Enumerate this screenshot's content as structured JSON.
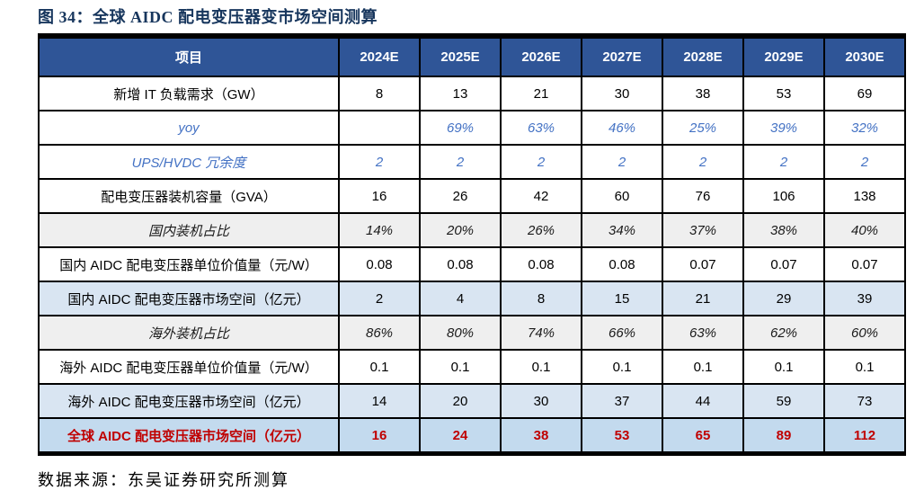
{
  "title": "图 34：全球 AIDC 配电变压器变市场空间测算",
  "source": "数据来源：东吴证券研究所测算",
  "colors": {
    "title_text": "#17365D",
    "header_bg": "#2F5597",
    "header_text": "#FFFFFF",
    "blue_italic_text": "#4472C4",
    "gray_row_bg": "#EFEFEF",
    "blue_row_bg": "#D9E5F2",
    "total_row_bg": "#C3DAEE",
    "total_text_red": "#C00000",
    "border": "#000000"
  },
  "chart_data": {
    "type": "table",
    "title": "全球 AIDC 配电变压器变市场空间测算",
    "columns": [
      "项目",
      "2024E",
      "2025E",
      "2026E",
      "2027E",
      "2028E",
      "2029E",
      "2030E"
    ],
    "rows": [
      {
        "label": "新增 IT 负载需求（GW）",
        "style": "plain",
        "values": [
          "8",
          "13",
          "21",
          "30",
          "38",
          "53",
          "69"
        ]
      },
      {
        "label": "yoy",
        "style": "blue-italic",
        "values": [
          "",
          "69%",
          "63%",
          "46%",
          "25%",
          "39%",
          "32%"
        ]
      },
      {
        "label": "UPS/HVDC 冗余度",
        "style": "blue-italic",
        "values": [
          "2",
          "2",
          "2",
          "2",
          "2",
          "2",
          "2"
        ]
      },
      {
        "label": "配电变压器装机容量（GVA）",
        "style": "plain",
        "values": [
          "16",
          "26",
          "42",
          "60",
          "76",
          "106",
          "138"
        ]
      },
      {
        "label": "国内装机占比",
        "style": "gray-italic",
        "values": [
          "14%",
          "20%",
          "26%",
          "34%",
          "37%",
          "38%",
          "40%"
        ]
      },
      {
        "label": "国内 AIDC 配电变压器单位价值量（元/W）",
        "style": "plain",
        "values": [
          "0.08",
          "0.08",
          "0.08",
          "0.08",
          "0.07",
          "0.07",
          "0.07"
        ]
      },
      {
        "label": "国内 AIDC 配电变压器市场空间（亿元）",
        "style": "blue-row",
        "values": [
          "2",
          "4",
          "8",
          "15",
          "21",
          "29",
          "39"
        ]
      },
      {
        "label": "海外装机占比",
        "style": "gray-italic",
        "values": [
          "86%",
          "80%",
          "74%",
          "66%",
          "63%",
          "62%",
          "60%"
        ]
      },
      {
        "label": "海外 AIDC 配电变压器单位价值量（元/W）",
        "style": "plain",
        "values": [
          "0.1",
          "0.1",
          "0.1",
          "0.1",
          "0.1",
          "0.1",
          "0.1"
        ]
      },
      {
        "label": "海外 AIDC 配电变压器市场空间（亿元）",
        "style": "blue-row",
        "values": [
          "14",
          "20",
          "30",
          "37",
          "44",
          "59",
          "73"
        ]
      },
      {
        "label": "全球 AIDC 配电变压器市场空间（亿元）",
        "style": "total-red",
        "values": [
          "16",
          "24",
          "38",
          "53",
          "65",
          "89",
          "112"
        ]
      }
    ]
  }
}
